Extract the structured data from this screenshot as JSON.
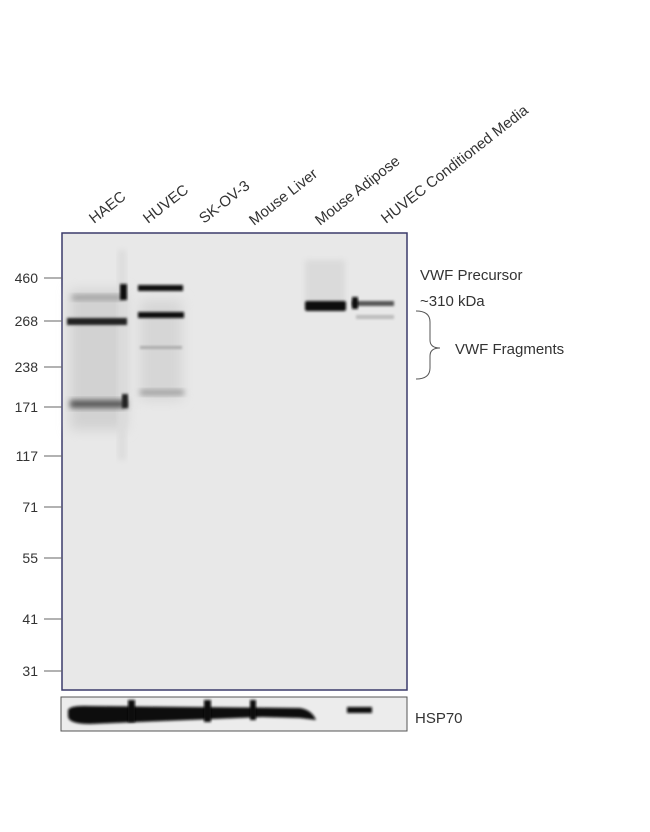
{
  "lanes": [
    "HAEC",
    "HUVEC",
    "SK-OV-3",
    "Mouse Liver",
    "Mouse  Adipose",
    "HUVEC Conditioned Media"
  ],
  "markers": [
    "460",
    "268",
    "238",
    "171",
    "117",
    "71",
    "55",
    "41",
    "31"
  ],
  "annotations": {
    "precursor": "VWF Precursor",
    "precursor_size": "~310 kDa",
    "fragments": "VWF Fragments",
    "loading_control": "HSP70"
  },
  "colors": {
    "blot_background": "#e8e8e8",
    "band": "#111111",
    "frame": "#3a3a6a"
  }
}
